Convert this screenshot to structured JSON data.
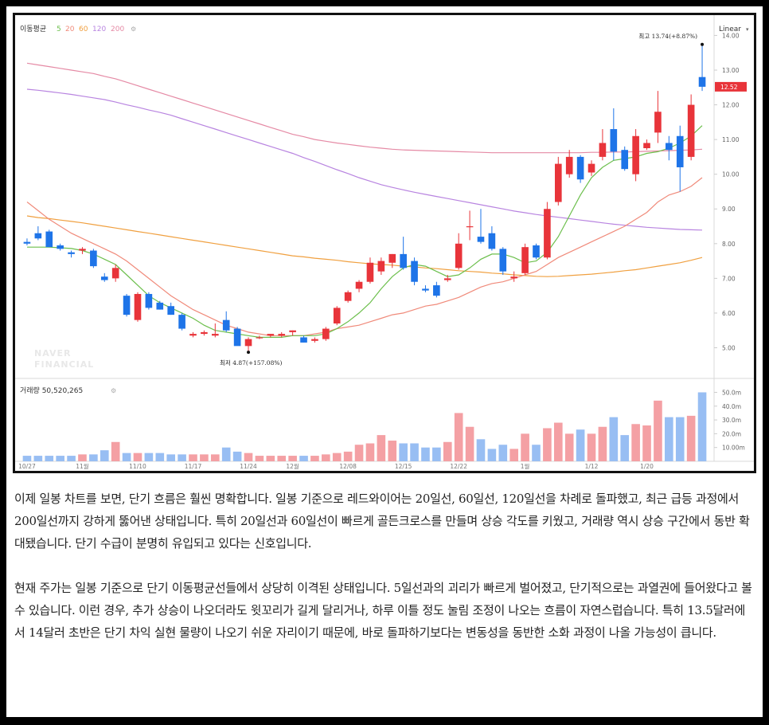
{
  "chart_data": {
    "type": "candlestick",
    "legend": {
      "label": "이동평균",
      "periods": [
        "5",
        "20",
        "60",
        "120",
        "200"
      ],
      "colors": [
        "#6cbf4c",
        "#f08a7a",
        "#f0a040",
        "#b884e0",
        "#e58aa5"
      ]
    },
    "scale_mode": "Linear",
    "current_price": "12.52",
    "high_annotation": "최고 13.74(+8.87%)",
    "low_annotation": "최저 4.87(+157.08%)",
    "watermark": [
      "NAVER",
      "FINANCIAL"
    ],
    "price_ticks": [
      "14.00",
      "13.00",
      "12.00",
      "11.00",
      "10.00",
      "9.00",
      "8.00",
      "7.00",
      "6.00",
      "5.00"
    ],
    "ylim": [
      4.3,
      14.4
    ],
    "volume_title": "거래량 50,520,265",
    "volume_ticks": [
      "50.0m",
      "40.0m",
      "30.0m",
      "20.0m",
      "10.00m"
    ],
    "volume_ylim": [
      0,
      52
    ],
    "x_labels": [
      "10/27",
      "11월",
      "11/10",
      "11/17",
      "11/24",
      "12월",
      "12/08",
      "12/15",
      "12/22",
      "1월",
      "1/12",
      "1/20"
    ],
    "x_label_index": [
      0,
      5,
      10,
      15,
      20,
      24,
      29,
      34,
      39,
      45,
      51,
      56
    ],
    "candles": [
      {
        "o": 8.05,
        "h": 8.15,
        "l": 7.95,
        "c": 8.0,
        "v": 4
      },
      {
        "o": 8.3,
        "h": 8.5,
        "l": 8.1,
        "c": 8.15,
        "v": 4
      },
      {
        "o": 8.35,
        "h": 8.4,
        "l": 7.9,
        "c": 7.9,
        "v": 4
      },
      {
        "o": 7.95,
        "h": 8.0,
        "l": 7.8,
        "c": 7.85,
        "v": 4
      },
      {
        "o": 7.75,
        "h": 7.8,
        "l": 7.6,
        "c": 7.7,
        "v": 4
      },
      {
        "o": 7.8,
        "h": 7.9,
        "l": 7.7,
        "c": 7.85,
        "v": 5
      },
      {
        "o": 7.8,
        "h": 7.85,
        "l": 7.3,
        "c": 7.35,
        "v": 5
      },
      {
        "o": 7.05,
        "h": 7.15,
        "l": 6.9,
        "c": 6.95,
        "v": 8
      },
      {
        "o": 7.0,
        "h": 7.4,
        "l": 6.9,
        "c": 7.3,
        "v": 14
      },
      {
        "o": 6.5,
        "h": 6.55,
        "l": 5.9,
        "c": 5.95,
        "v": 6
      },
      {
        "o": 5.8,
        "h": 6.6,
        "l": 5.75,
        "c": 6.55,
        "v": 6
      },
      {
        "o": 6.55,
        "h": 6.6,
        "l": 6.1,
        "c": 6.15,
        "v": 6
      },
      {
        "o": 6.3,
        "h": 6.35,
        "l": 6.1,
        "c": 6.1,
        "v": 6
      },
      {
        "o": 6.2,
        "h": 6.3,
        "l": 5.95,
        "c": 5.95,
        "v": 5
      },
      {
        "o": 5.95,
        "h": 6.0,
        "l": 5.5,
        "c": 5.55,
        "v": 5
      },
      {
        "o": 5.35,
        "h": 5.45,
        "l": 5.3,
        "c": 5.4,
        "v": 5
      },
      {
        "o": 5.4,
        "h": 5.5,
        "l": 5.35,
        "c": 5.45,
        "v": 5
      },
      {
        "o": 5.35,
        "h": 5.7,
        "l": 5.3,
        "c": 5.4,
        "v": 5
      },
      {
        "o": 5.8,
        "h": 6.05,
        "l": 5.45,
        "c": 5.5,
        "v": 10
      },
      {
        "o": 5.55,
        "h": 5.6,
        "l": 5.1,
        "c": 5.05,
        "v": 7
      },
      {
        "o": 5.05,
        "h": 5.3,
        "l": 4.87,
        "c": 5.25,
        "v": 6
      },
      {
        "o": 5.3,
        "h": 5.35,
        "l": 5.25,
        "c": 5.3,
        "v": 4
      },
      {
        "o": 5.35,
        "h": 5.4,
        "l": 5.3,
        "c": 5.4,
        "v": 4
      },
      {
        "o": 5.35,
        "h": 5.45,
        "l": 5.3,
        "c": 5.4,
        "v": 4
      },
      {
        "o": 5.45,
        "h": 5.5,
        "l": 5.35,
        "c": 5.5,
        "v": 4
      },
      {
        "o": 5.3,
        "h": 5.35,
        "l": 5.15,
        "c": 5.15,
        "v": 4
      },
      {
        "o": 5.2,
        "h": 5.3,
        "l": 5.15,
        "c": 5.25,
        "v": 4
      },
      {
        "o": 5.25,
        "h": 5.6,
        "l": 5.2,
        "c": 5.55,
        "v": 5
      },
      {
        "o": 5.7,
        "h": 6.2,
        "l": 5.65,
        "c": 6.15,
        "v": 6
      },
      {
        "o": 6.35,
        "h": 6.65,
        "l": 6.3,
        "c": 6.6,
        "v": 7
      },
      {
        "o": 6.7,
        "h": 6.95,
        "l": 6.6,
        "c": 6.9,
        "v": 12
      },
      {
        "o": 6.9,
        "h": 7.6,
        "l": 6.85,
        "c": 7.45,
        "v": 13
      },
      {
        "o": 7.2,
        "h": 7.6,
        "l": 7.1,
        "c": 7.5,
        "v": 19
      },
      {
        "o": 7.45,
        "h": 7.7,
        "l": 7.3,
        "c": 7.7,
        "v": 15
      },
      {
        "o": 7.7,
        "h": 8.2,
        "l": 7.25,
        "c": 7.3,
        "v": 13
      },
      {
        "o": 7.5,
        "h": 7.6,
        "l": 6.8,
        "c": 6.9,
        "v": 13
      },
      {
        "o": 6.7,
        "h": 6.8,
        "l": 6.6,
        "c": 6.65,
        "v": 10
      },
      {
        "o": 6.8,
        "h": 6.9,
        "l": 6.45,
        "c": 6.5,
        "v": 10
      },
      {
        "o": 6.95,
        "h": 7.1,
        "l": 6.9,
        "c": 7.0,
        "v": 14
      },
      {
        "o": 7.3,
        "h": 8.3,
        "l": 7.25,
        "c": 8.0,
        "v": 35
      },
      {
        "o": 8.5,
        "h": 8.95,
        "l": 8.1,
        "c": 8.5,
        "v": 25
      },
      {
        "o": 8.2,
        "h": 9.0,
        "l": 8.0,
        "c": 8.05,
        "v": 16
      },
      {
        "o": 8.3,
        "h": 8.5,
        "l": 7.8,
        "c": 7.85,
        "v": 9
      },
      {
        "o": 7.85,
        "h": 7.9,
        "l": 7.1,
        "c": 7.2,
        "v": 12
      },
      {
        "o": 7.0,
        "h": 7.2,
        "l": 6.9,
        "c": 7.05,
        "v": 9
      },
      {
        "o": 7.15,
        "h": 8.0,
        "l": 7.1,
        "c": 7.9,
        "v": 20
      },
      {
        "o": 7.95,
        "h": 8.0,
        "l": 7.55,
        "c": 7.6,
        "v": 12
      },
      {
        "o": 7.6,
        "h": 9.2,
        "l": 7.55,
        "c": 9.0,
        "v": 24
      },
      {
        "o": 9.2,
        "h": 10.5,
        "l": 9.1,
        "c": 10.3,
        "v": 28
      },
      {
        "o": 10.0,
        "h": 10.7,
        "l": 9.9,
        "c": 10.5,
        "v": 20
      },
      {
        "o": 10.5,
        "h": 10.55,
        "l": 9.75,
        "c": 9.85,
        "v": 23
      },
      {
        "o": 10.05,
        "h": 10.4,
        "l": 9.95,
        "c": 10.3,
        "v": 20
      },
      {
        "o": 10.5,
        "h": 11.3,
        "l": 10.4,
        "c": 10.9,
        "v": 25
      },
      {
        "o": 11.3,
        "h": 11.9,
        "l": 10.4,
        "c": 10.65,
        "v": 32
      },
      {
        "o": 10.7,
        "h": 10.8,
        "l": 10.1,
        "c": 10.15,
        "v": 19
      },
      {
        "o": 10.0,
        "h": 11.3,
        "l": 9.8,
        "c": 11.1,
        "v": 27
      },
      {
        "o": 10.75,
        "h": 11.0,
        "l": 10.7,
        "c": 10.9,
        "v": 26
      },
      {
        "o": 11.2,
        "h": 12.4,
        "l": 10.9,
        "c": 11.8,
        "v": 44
      },
      {
        "o": 10.9,
        "h": 11.1,
        "l": 10.4,
        "c": 10.7,
        "v": 32
      },
      {
        "o": 11.1,
        "h": 11.4,
        "l": 9.5,
        "c": 10.2,
        "v": 32
      },
      {
        "o": 10.5,
        "h": 12.3,
        "l": 10.4,
        "c": 12.0,
        "v": 33
      },
      {
        "o": 12.8,
        "h": 13.74,
        "l": 12.4,
        "c": 12.52,
        "v": 50
      }
    ],
    "ma": {
      "5": [
        7.9,
        7.9,
        7.9,
        7.88,
        7.86,
        7.8,
        7.7,
        7.55,
        7.4,
        7.1,
        6.8,
        6.5,
        6.3,
        6.15,
        6.0,
        5.85,
        5.65,
        5.5,
        5.45,
        5.4,
        5.35,
        5.3,
        5.3,
        5.3,
        5.35,
        5.35,
        5.35,
        5.4,
        5.55,
        5.75,
        6.0,
        6.3,
        6.7,
        7.05,
        7.3,
        7.4,
        7.35,
        7.2,
        7.05,
        7.1,
        7.3,
        7.55,
        7.7,
        7.7,
        7.6,
        7.45,
        7.5,
        7.75,
        8.2,
        8.8,
        9.4,
        9.9,
        10.2,
        10.4,
        10.45,
        10.5,
        10.6,
        10.65,
        10.75,
        10.9,
        11.1,
        11.4
      ],
      "20": [
        9.2,
        8.95,
        8.7,
        8.5,
        8.3,
        8.15,
        8.0,
        7.85,
        7.7,
        7.5,
        7.25,
        7.0,
        6.75,
        6.5,
        6.3,
        6.1,
        5.95,
        5.8,
        5.65,
        5.55,
        5.45,
        5.4,
        5.35,
        5.35,
        5.35,
        5.35,
        5.4,
        5.45,
        5.55,
        5.6,
        5.65,
        5.75,
        5.85,
        5.95,
        6.0,
        6.1,
        6.2,
        6.25,
        6.35,
        6.45,
        6.6,
        6.75,
        6.85,
        6.9,
        7.0,
        7.1,
        7.2,
        7.4,
        7.6,
        7.75,
        7.9,
        8.05,
        8.2,
        8.35,
        8.5,
        8.7,
        8.9,
        9.2,
        9.4,
        9.5,
        9.65,
        9.9
      ],
      "60": [
        8.8,
        8.75,
        8.72,
        8.68,
        8.64,
        8.6,
        8.55,
        8.5,
        8.45,
        8.4,
        8.35,
        8.3,
        8.25,
        8.2,
        8.15,
        8.1,
        8.05,
        8.0,
        7.95,
        7.9,
        7.85,
        7.8,
        7.75,
        7.7,
        7.65,
        7.62,
        7.58,
        7.55,
        7.52,
        7.48,
        7.45,
        7.42,
        7.4,
        7.38,
        7.35,
        7.33,
        7.3,
        7.28,
        7.25,
        7.22,
        7.2,
        7.18,
        7.15,
        7.13,
        7.1,
        7.08,
        7.06,
        7.05,
        7.06,
        7.08,
        7.1,
        7.12,
        7.15,
        7.18,
        7.22,
        7.25,
        7.3,
        7.35,
        7.4,
        7.45,
        7.52,
        7.6
      ],
      "120": [
        12.45,
        12.42,
        12.38,
        12.34,
        12.3,
        12.25,
        12.2,
        12.15,
        12.08,
        12.0,
        11.93,
        11.85,
        11.78,
        11.7,
        11.6,
        11.5,
        11.4,
        11.3,
        11.2,
        11.1,
        11.0,
        10.9,
        10.8,
        10.7,
        10.6,
        10.48,
        10.37,
        10.25,
        10.13,
        10.02,
        9.9,
        9.8,
        9.7,
        9.62,
        9.55,
        9.48,
        9.42,
        9.36,
        9.3,
        9.24,
        9.18,
        9.12,
        9.06,
        9.0,
        8.94,
        8.89,
        8.84,
        8.8,
        8.76,
        8.72,
        8.68,
        8.64,
        8.6,
        8.56,
        8.53,
        8.5,
        8.47,
        8.45,
        8.43,
        8.41,
        8.4,
        8.39
      ],
      "200": [
        13.2,
        13.15,
        13.1,
        13.05,
        13.0,
        12.95,
        12.9,
        12.82,
        12.75,
        12.65,
        12.55,
        12.45,
        12.35,
        12.25,
        12.15,
        12.05,
        11.95,
        11.85,
        11.75,
        11.65,
        11.55,
        11.45,
        11.35,
        11.25,
        11.15,
        11.08,
        11.0,
        10.95,
        10.9,
        10.86,
        10.82,
        10.78,
        10.75,
        10.72,
        10.7,
        10.69,
        10.68,
        10.67,
        10.66,
        10.65,
        10.64,
        10.63,
        10.62,
        10.62,
        10.62,
        10.62,
        10.62,
        10.62,
        10.62,
        10.62,
        10.62,
        10.63,
        10.63,
        10.64,
        10.64,
        10.65,
        10.66,
        10.67,
        10.68,
        10.69,
        10.7,
        10.72
      ]
    }
  },
  "article": {
    "paragraphs": [
      "이제 일봉 차트를 보면, 단기 흐름은 훨씬 명확합니다. 일봉 기준으로 레드와이어는 20일선, 60일선, 120일선을 차례로 돌파했고, 최근 급등 과정에서 200일선까지 강하게 뚫어낸 상태입니다. 특히 20일선과 60일선이 빠르게 골든크로스를 만들며 상승 각도를 키웠고, 거래량 역시 상승 구간에서 동반 확대됐습니다. 단기 수급이 분명히 유입되고 있다는 신호입니다.",
      "현재 주가는 일봉 기준으로 단기 이동평균선들에서 상당히 이격된 상태입니다. 5일선과의 괴리가 빠르게 벌어졌고, 단기적으로는 과열권에 들어왔다고 볼 수 있습니다. 이런 경우, 추가 상승이 나오더라도 윗꼬리가 길게 달리거나, 하루 이틀 정도 눌림 조정이 나오는 흐름이 자연스럽습니다. 특히 13.5달러에서 14달러 초반은 단기 차익 실현 물량이 나오기 쉬운 자리이기 때문에, 바로 돌파하기보다는 변동성을 동반한 소화 과정이 나올 가능성이 큽니다."
    ]
  }
}
